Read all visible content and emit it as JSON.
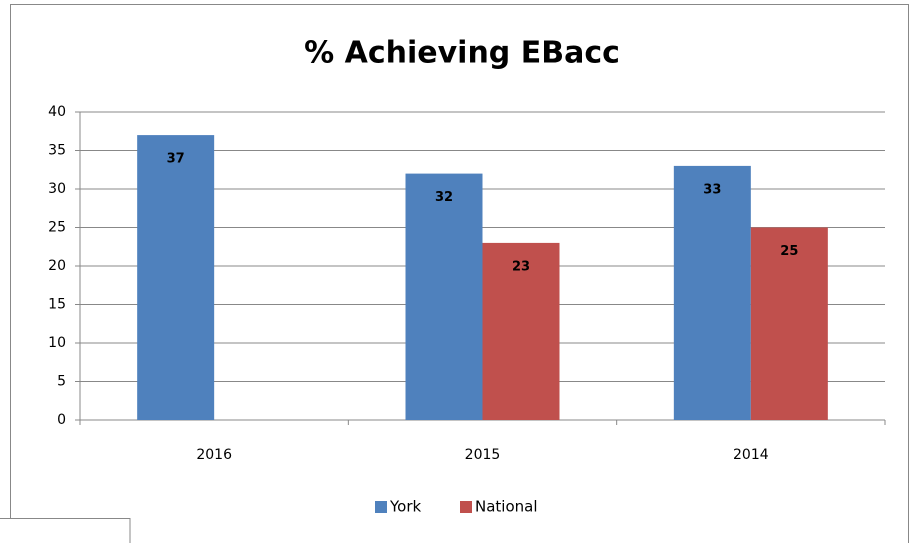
{
  "chart_data": {
    "type": "bar",
    "title": "% Achieving EBacc",
    "categories": [
      "2016",
      "2015",
      "2014"
    ],
    "series": [
      {
        "name": "York",
        "color": "#4f81bd",
        "values": [
          37,
          32,
          33
        ]
      },
      {
        "name": "National",
        "color": "#c0504d",
        "values": [
          null,
          23,
          25
        ]
      }
    ],
    "ylim": [
      0,
      40
    ],
    "yticks": [
      0,
      5,
      10,
      15,
      20,
      25,
      30,
      35,
      40
    ],
    "grid": true,
    "legend": "bottom"
  }
}
